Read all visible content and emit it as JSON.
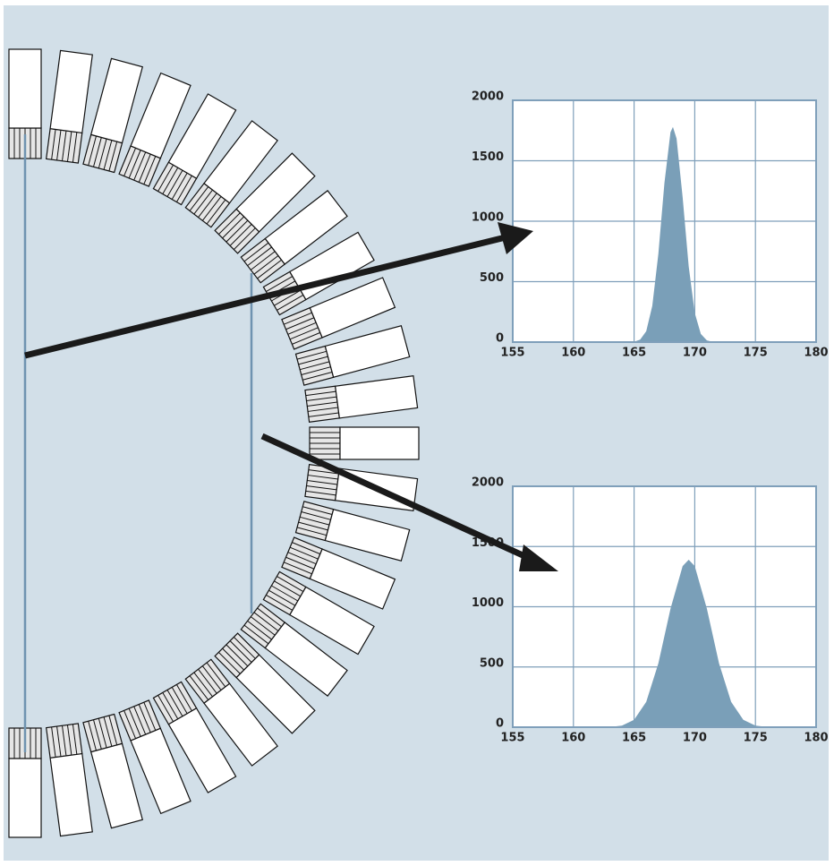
{
  "chart_data": [
    {
      "type": "area",
      "x": [
        164.5,
        165,
        165.5,
        166,
        166.5,
        167,
        167.5,
        168,
        168.2,
        168.5,
        169,
        169.5,
        170,
        170.5,
        171,
        171.5,
        172
      ],
      "values": [
        0,
        3,
        20,
        90,
        300,
        730,
        1316,
        1736,
        1780,
        1684,
        1199,
        627,
        241,
        68,
        14,
        2,
        0
      ],
      "color": "#7a9fb8",
      "xlim": [
        155,
        180
      ],
      "ylim": [
        0,
        2000
      ],
      "xticks": [
        155,
        160,
        165,
        170,
        175,
        180
      ],
      "yticks": [
        0,
        500,
        1000,
        1500,
        2000
      ],
      "grid": true
    },
    {
      "type": "area",
      "x": [
        162,
        163,
        164,
        165,
        166,
        167,
        168,
        169,
        169.5,
        170,
        171,
        172,
        173,
        174,
        175,
        176,
        177
      ],
      "values": [
        0,
        2,
        13,
        61,
        210,
        530,
        983,
        1337,
        1390,
        1337,
        983,
        530,
        210,
        61,
        13,
        2,
        0
      ],
      "color": "#7a9fb8",
      "xlim": [
        155,
        180
      ],
      "ylim": [
        0,
        2000
      ],
      "xticks": [
        155,
        160,
        165,
        170,
        175,
        180
      ],
      "yticks": [
        0,
        500,
        1000,
        1500,
        2000
      ],
      "grid": true
    }
  ]
}
